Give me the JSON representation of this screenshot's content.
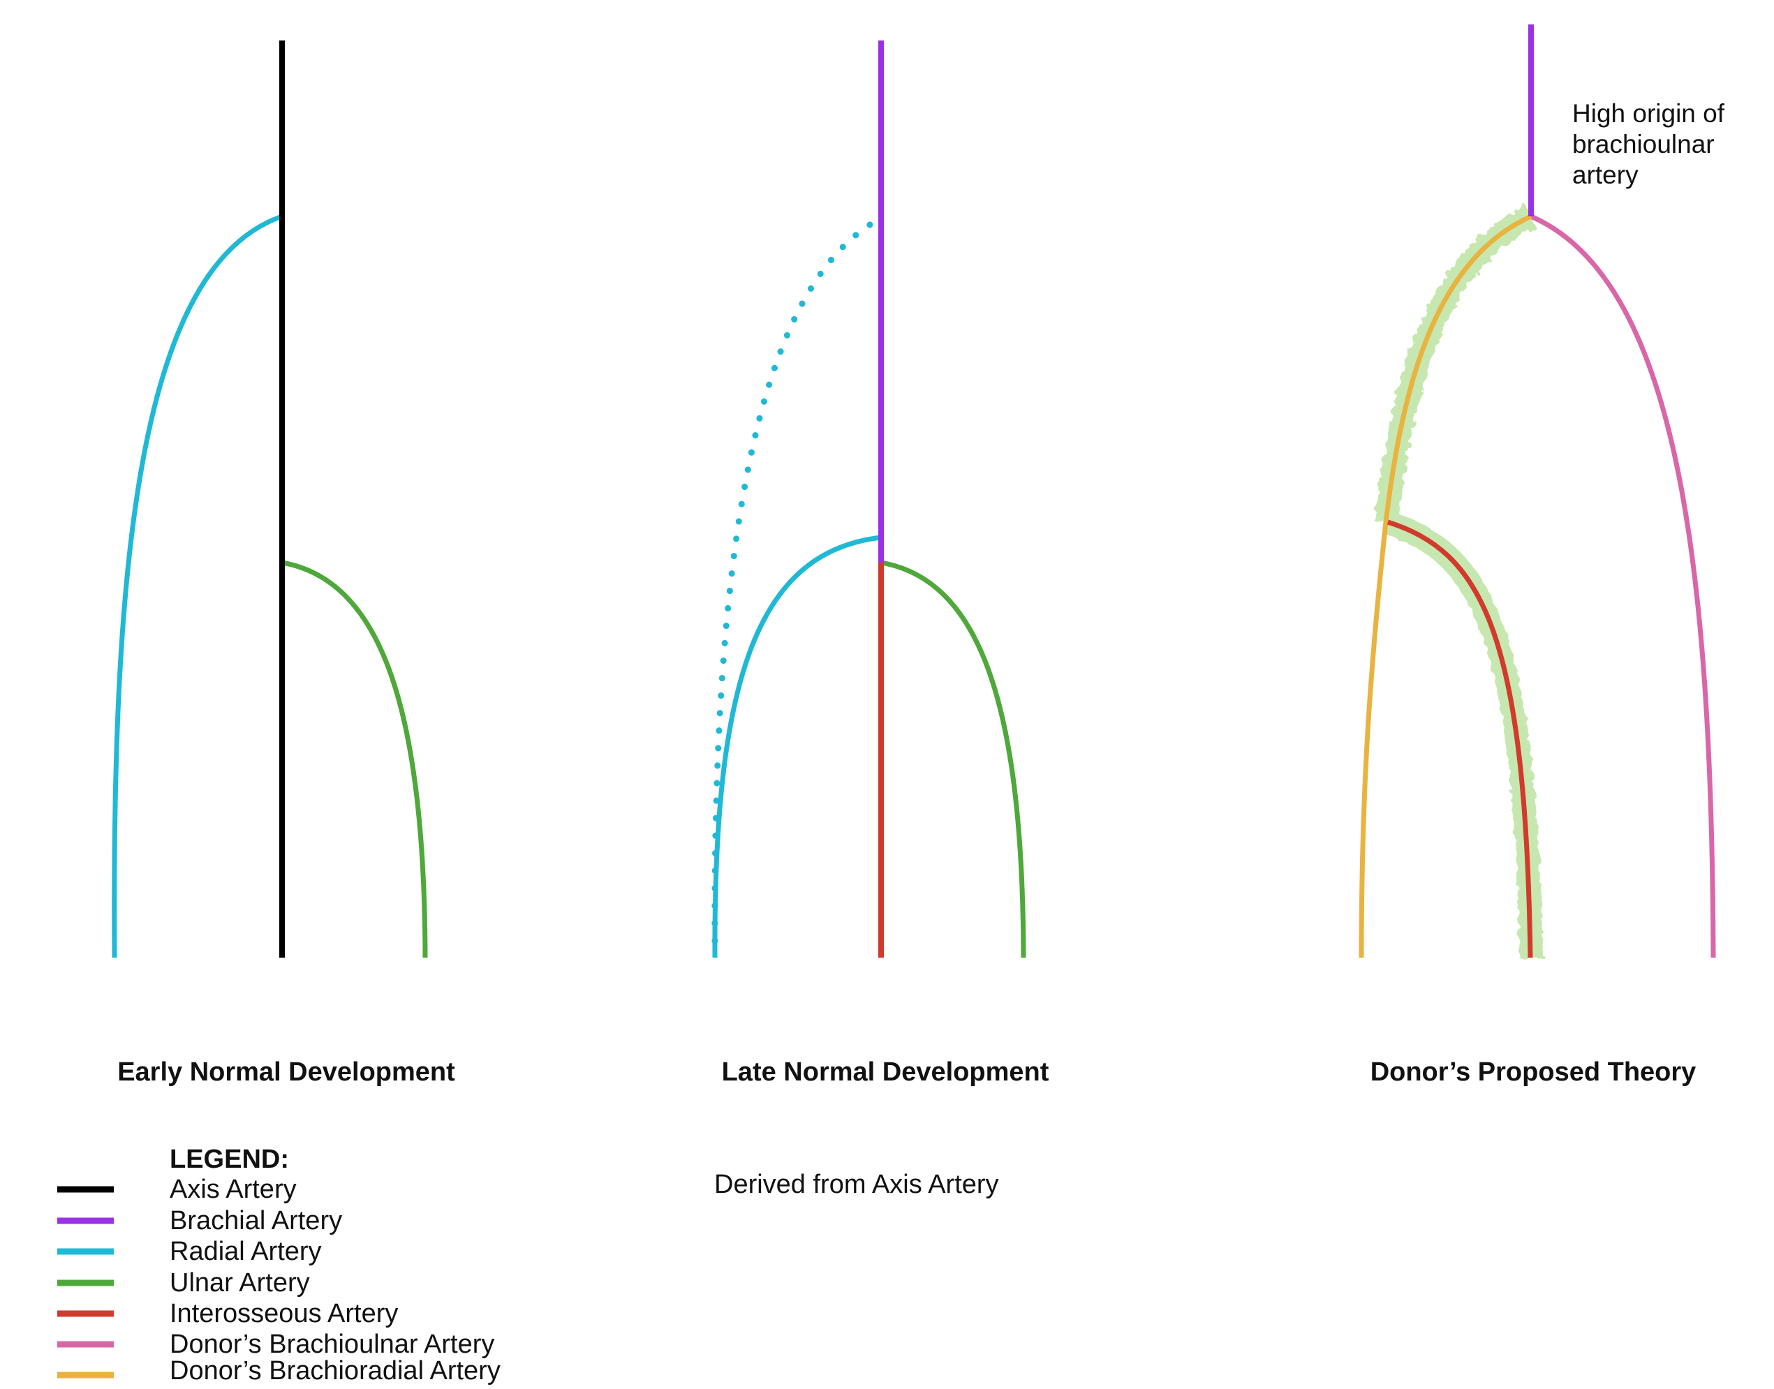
{
  "panels": [
    {
      "title": "Early Normal Development"
    },
    {
      "title": "Late Normal Development"
    },
    {
      "title": "Donor’s Proposed Theory"
    }
  ],
  "annotation": {
    "lines": [
      "High origin of",
      "brachioulnar",
      "artery"
    ]
  },
  "legend": {
    "heading": "LEGEND:",
    "items": [
      {
        "label": "Axis Artery",
        "color": "#000000"
      },
      {
        "label": "Brachial Artery",
        "color": "#9b30e8"
      },
      {
        "label": "Radial Artery",
        "color": "#1fb9d6"
      },
      {
        "label": "Ulnar Artery",
        "color": "#4ea83a"
      },
      {
        "label": "Interosseous Artery",
        "color": "#d23a2c"
      },
      {
        "label": "Donor’s Brachioulnar Artery",
        "color": "#d966a8"
      },
      {
        "label": "Donor’s Brachioradial Artery",
        "color": "#e8b340"
      }
    ],
    "axis_derived": {
      "label": "Derived from Axis Artery",
      "color": "#c6e8b0"
    }
  }
}
